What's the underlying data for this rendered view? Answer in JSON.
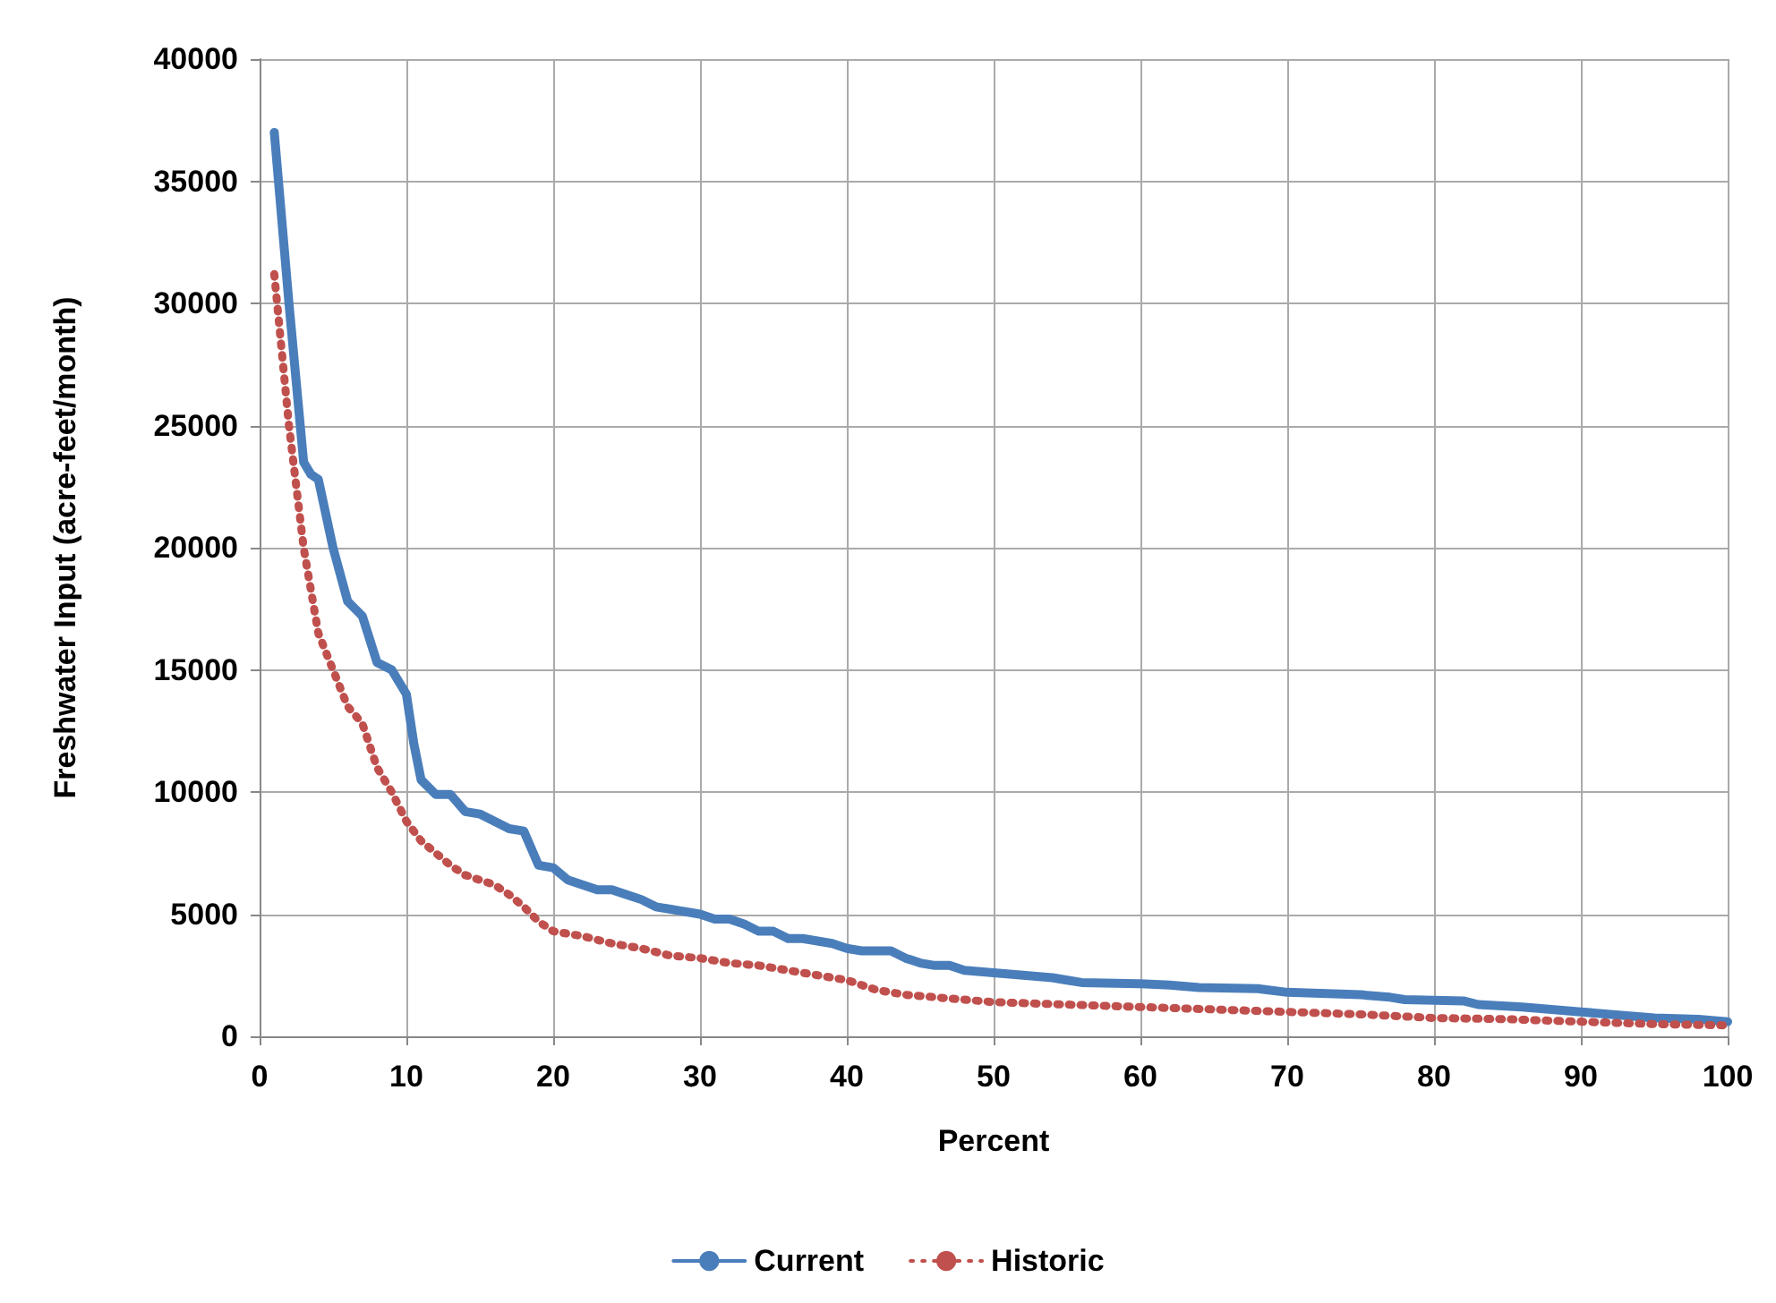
{
  "chart_data": {
    "type": "line",
    "xlabel": "Percent",
    "ylabel": "Freshwater Input (acre-feet/month)",
    "xlim": [
      0,
      100
    ],
    "xticks": [
      0,
      10,
      20,
      30,
      40,
      50,
      60,
      70,
      80,
      90,
      100
    ],
    "ylim": [
      0,
      40000
    ],
    "yticks": [
      0,
      5000,
      10000,
      15000,
      20000,
      25000,
      30000,
      35000,
      40000
    ],
    "grid": true,
    "legend": "bottom",
    "marker": "none",
    "series": [
      {
        "name": "Current",
        "color": "#4a7ebb",
        "line_style": "solid",
        "x": [
          1,
          2,
          3,
          3.5,
          4,
          5,
          6,
          7,
          8,
          9,
          10,
          10.5,
          11,
          12,
          13,
          14,
          15,
          16,
          17,
          18,
          19,
          20,
          21,
          22,
          23,
          24,
          25,
          26,
          27,
          28,
          29,
          30,
          31,
          32,
          33,
          34,
          35,
          36,
          37,
          38,
          39,
          40,
          41,
          42,
          43,
          44,
          45,
          46,
          47,
          48,
          50,
          52,
          54,
          55,
          56,
          60,
          62,
          64,
          68,
          70,
          75,
          77,
          78,
          82,
          83,
          86,
          90,
          92,
          95,
          98,
          100
        ],
        "values": [
          37000,
          30000,
          23500,
          23000,
          22800,
          20000,
          17800,
          17200,
          15300,
          15000,
          14000,
          12000,
          10500,
          9900,
          9900,
          9200,
          9100,
          8800,
          8500,
          8400,
          7000,
          6900,
          6400,
          6200,
          6000,
          6000,
          5800,
          5600,
          5300,
          5200,
          5100,
          5000,
          4800,
          4800,
          4600,
          4300,
          4300,
          4000,
          4000,
          3900,
          3800,
          3600,
          3500,
          3500,
          3500,
          3200,
          3000,
          2900,
          2900,
          2700,
          2600,
          2500,
          2400,
          2300,
          2200,
          2150,
          2100,
          2000,
          1950,
          1800,
          1700,
          1600,
          1500,
          1450,
          1300,
          1200,
          1000,
          900,
          750,
          700,
          600
        ]
      },
      {
        "name": "Historic",
        "color": "#c0504d",
        "line_style": "dotted",
        "x": [
          1,
          2,
          3,
          4,
          5,
          6,
          7,
          8,
          9,
          10,
          11,
          12,
          13,
          14,
          15,
          16,
          17,
          18,
          19,
          20,
          22,
          24,
          26,
          28,
          30,
          32,
          34,
          36,
          38,
          40,
          42,
          44,
          46,
          48,
          50,
          55,
          60,
          65,
          70,
          75,
          80,
          85,
          90,
          95,
          100
        ],
        "values": [
          31200,
          25000,
          20000,
          16500,
          15000,
          13500,
          12800,
          11000,
          10000,
          8800,
          8000,
          7500,
          7000,
          6600,
          6400,
          6200,
          5800,
          5300,
          4700,
          4300,
          4100,
          3800,
          3600,
          3300,
          3200,
          3000,
          2900,
          2700,
          2500,
          2300,
          1900,
          1700,
          1600,
          1500,
          1400,
          1300,
          1200,
          1100,
          1000,
          900,
          750,
          700,
          600,
          500,
          450
        ]
      }
    ]
  }
}
